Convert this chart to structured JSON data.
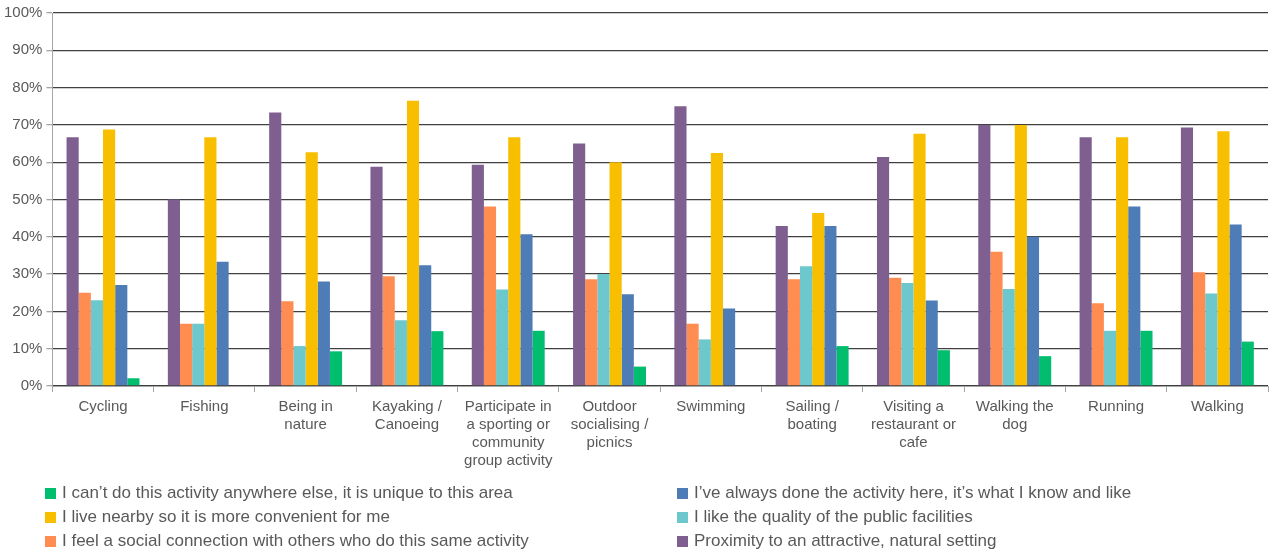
{
  "chart_data": {
    "type": "bar",
    "categories": [
      "Cycling",
      "Fishing",
      "Being in nature",
      "Kayaking / Canoeing",
      "Participate in a sporting or community group activity",
      "Outdoor socialising / picnics",
      "Swimming",
      "Sailing / boating",
      "Visiting a restaurant or cafe",
      "Walking the dog",
      "Running",
      "Walking"
    ],
    "series": [
      {
        "name": "Proximity to an attractive, natural setting",
        "color": "#7f5f8f",
        "values": [
          66.7,
          50,
          73.3,
          58.8,
          59.3,
          65,
          75,
          42.9,
          61.4,
          70,
          66.7,
          69.3
        ]
      },
      {
        "name": "I feel a social connection with others who do this same activity",
        "color": "#ff8c50",
        "values": [
          25,
          16.7,
          22.7,
          29.4,
          48.1,
          28.6,
          16.7,
          28.6,
          29,
          36,
          22.2,
          30.5
        ]
      },
      {
        "name": "I like the quality of the public facilities",
        "color": "#6cc8cc",
        "values": [
          23,
          16.7,
          10.7,
          17.6,
          25.9,
          30,
          12.5,
          32.1,
          27.6,
          26,
          14.8,
          24.8
        ]
      },
      {
        "name": "I live nearby so it is more convenient for me",
        "color": "#f8be00",
        "values": [
          68.8,
          66.7,
          62.7,
          76.5,
          66.7,
          60,
          62.5,
          46.4,
          67.6,
          70,
          66.7,
          68.3
        ]
      },
      {
        "name": "I’ve always done the activity here, it’s what I know and like",
        "color": "#4e7cb6",
        "values": [
          27.1,
          33.3,
          28,
          32.4,
          40.7,
          24.6,
          20.8,
          42.9,
          22.9,
          40,
          48.1,
          43.3
        ]
      },
      {
        "name": "I can’t do this activity anywhere else, it is unique to this area",
        "color": "#00be6e",
        "values": [
          2.1,
          0,
          9.3,
          14.7,
          14.8,
          5.2,
          0,
          10.7,
          9.6,
          8,
          14.8,
          11.9
        ]
      }
    ],
    "ylim": [
      0,
      100
    ],
    "yticks": [
      {
        "value": 0,
        "label": "0%"
      },
      {
        "value": 10,
        "label": "10%"
      },
      {
        "value": 20,
        "label": "20%"
      },
      {
        "value": 30,
        "label": "30%"
      },
      {
        "value": 40,
        "label": "40%"
      },
      {
        "value": 50,
        "label": "50%"
      },
      {
        "value": 60,
        "label": "60%"
      },
      {
        "value": 70,
        "label": "70%"
      },
      {
        "value": 80,
        "label": "80%"
      },
      {
        "value": 90,
        "label": "90%"
      },
      {
        "value": 100,
        "label": "100%"
      }
    ],
    "grid": "y",
    "legend": "bottom"
  }
}
